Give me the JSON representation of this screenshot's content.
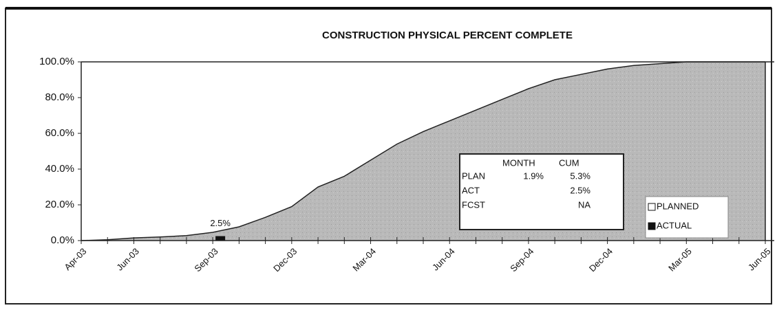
{
  "chart_data": {
    "type": "area",
    "title": "CONSTRUCTION PHYSICAL PERCENT COMPLETE",
    "categories": [
      "Apr-03",
      null,
      "Jun-03",
      null,
      null,
      "Sep-03",
      null,
      null,
      "Dec-03",
      null,
      null,
      "Mar-04",
      null,
      null,
      "Jun-04",
      null,
      null,
      "Sep-04",
      null,
      null,
      "Dec-04",
      null,
      null,
      "Mar-05",
      null,
      null,
      "Jun-05"
    ],
    "series": [
      {
        "name": "PLANNED",
        "type": "area",
        "color": "#b9b9b9",
        "legend_color": "#ffffff",
        "values": [
          0,
          0.5,
          1.5,
          2,
          2.8,
          4.6,
          7.7,
          13,
          19,
          30,
          36,
          45,
          54,
          61,
          67,
          73,
          79,
          85,
          90,
          93,
          96,
          98,
          99,
          100,
          100,
          100,
          100
        ]
      },
      {
        "name": "ACTUAL",
        "type": "bar",
        "color": "#111111",
        "legend_color": "#111111",
        "values": [
          null,
          null,
          null,
          null,
          null,
          2.5,
          null,
          null,
          null,
          null,
          null,
          null,
          null,
          null,
          null,
          null,
          null,
          null,
          null,
          null,
          null,
          null,
          null,
          null,
          null,
          null,
          null
        ],
        "value_labels": [
          null,
          null,
          null,
          null,
          null,
          "2.5%",
          null,
          null,
          null,
          null,
          null,
          null,
          null,
          null,
          null,
          null,
          null,
          null,
          null,
          null,
          null,
          null,
          null,
          null,
          null,
          null,
          null
        ]
      }
    ],
    "ylim": [
      0,
      100
    ],
    "yticks": [
      {
        "value": 0,
        "label": "0.0%"
      },
      {
        "value": 20,
        "label": "20.0%"
      },
      {
        "value": 40,
        "label": "40.0%"
      },
      {
        "value": 60,
        "label": "60.0%"
      },
      {
        "value": 80,
        "label": "80.0%"
      },
      {
        "value": 100,
        "label": "100.0%"
      }
    ],
    "legend": "lower right",
    "summary_table": {
      "columns": [
        "MONTH",
        "CUM"
      ],
      "rows": [
        {
          "label": "PLAN",
          "month": "1.9%",
          "cum": "5.3%"
        },
        {
          "label": "ACT",
          "cum": "2.5%"
        },
        {
          "label": "FCST",
          "cum": "NA"
        }
      ]
    }
  }
}
